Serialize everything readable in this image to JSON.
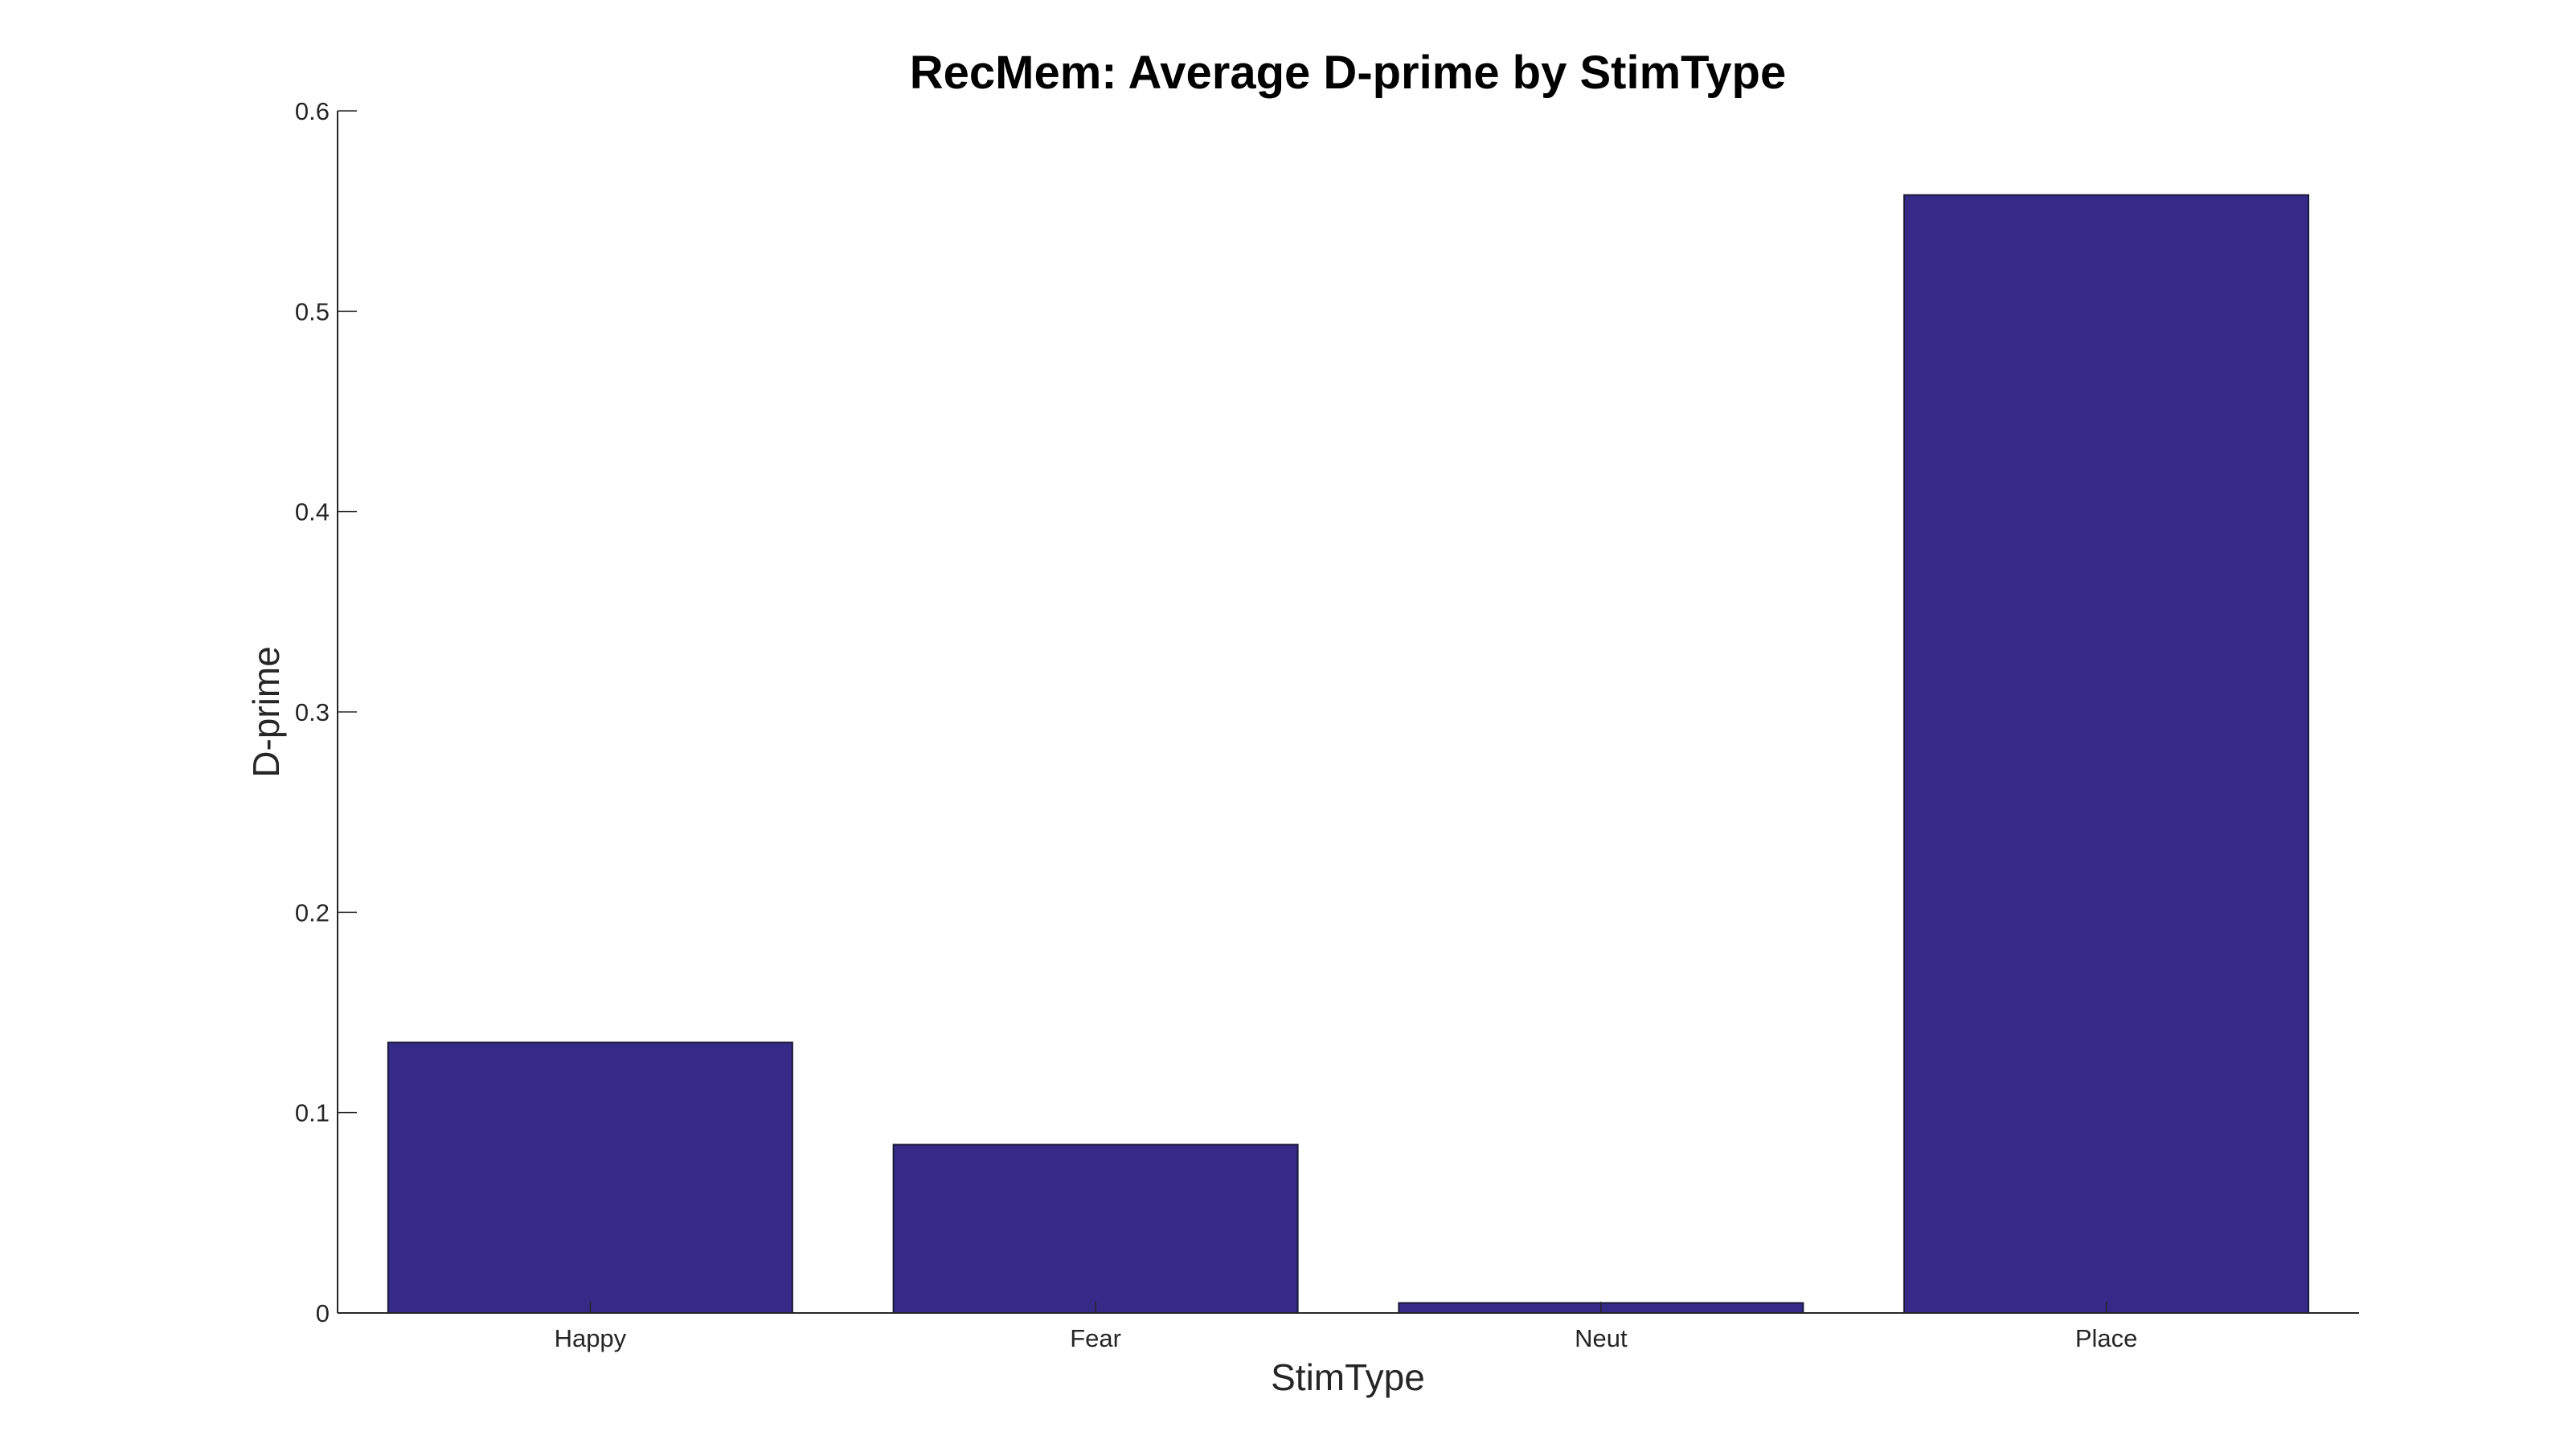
{
  "chart_data": {
    "type": "bar",
    "title": "RecMem: Average D-prime by StimType",
    "xlabel": "StimType",
    "ylabel": "D-prime",
    "categories": [
      "Happy",
      "Fear",
      "Neut",
      "Place"
    ],
    "values": [
      0.135,
      0.084,
      0.005,
      0.558
    ],
    "ylim": [
      0,
      0.6
    ],
    "yticks": [
      "0",
      "0.1",
      "0.2",
      "0.3",
      "0.4",
      "0.5",
      "0.6"
    ],
    "grid": false,
    "legend": "none",
    "colors": {
      "bar_fill": "#352A87",
      "bar_edge": "#1a1a3a",
      "axis": "#262626"
    }
  }
}
